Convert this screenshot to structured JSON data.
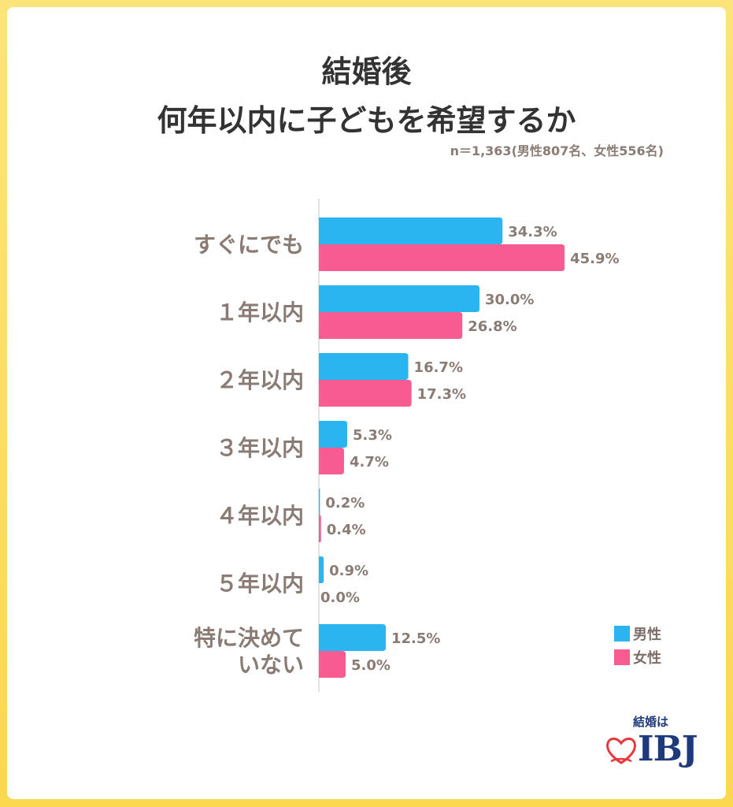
{
  "header": {
    "title_line1": "結婚後",
    "title_line2": "何年以内に子どもを希望するか",
    "sample": "n＝1,363(男性807名、女性556名)"
  },
  "legend": {
    "male": "男性",
    "female": "女性"
  },
  "logo": {
    "top_text": "結婚は",
    "main_text": "IBJ"
  },
  "colors": {
    "male": "#2bb5f0",
    "female": "#f75b92",
    "label": "#8a7c74"
  },
  "chart_data": {
    "type": "bar",
    "orientation": "horizontal",
    "title": "結婚後 何年以内に子どもを希望するか",
    "categories": [
      "すぐにでも",
      "１年以内",
      "２年以内",
      "３年以内",
      "４年以内",
      "５年以内",
      "特に決めて\nいない"
    ],
    "series": [
      {
        "name": "男性",
        "values": [
          34.3,
          30.0,
          16.7,
          5.3,
          0.2,
          0.9,
          12.5
        ]
      },
      {
        "name": "女性",
        "values": [
          45.9,
          26.8,
          17.3,
          4.7,
          0.4,
          0.0,
          5.0
        ]
      }
    ],
    "value_labels": {
      "男性": [
        "34.3%",
        "30.0%",
        "16.7%",
        "5.3%",
        "0.2%",
        "0.9%",
        "12.5%"
      ],
      "女性": [
        "45.9%",
        "26.8%",
        "17.3%",
        "4.7%",
        "0.4%",
        "0.0%",
        "5.0%"
      ]
    },
    "unit": "%",
    "xlim": [
      0,
      50
    ],
    "grid": false,
    "legend_position": "bottom-right"
  }
}
